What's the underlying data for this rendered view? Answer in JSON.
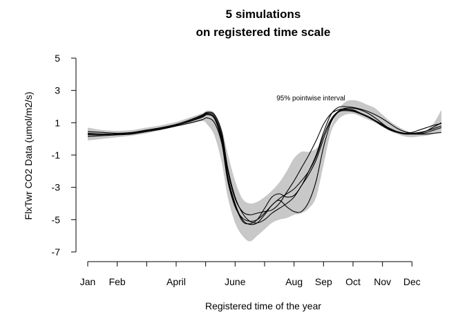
{
  "chart_data": {
    "type": "line",
    "title": "5 simulations",
    "subtitle": "on registered time scale",
    "xlabel": "Registered time of the year",
    "ylabel": "FlxTwr CO2 Data (umol/m2/s)",
    "annotation": "95% pointwise interval",
    "ylim": [
      -7,
      5
    ],
    "yticks": [
      "5",
      "3",
      "1",
      "-1",
      "-3",
      "-5",
      "-7"
    ],
    "xlim": [
      1,
      13
    ],
    "xticks": [
      {
        "x": 1,
        "label": "Jan"
      },
      {
        "x": 2,
        "label": "Feb"
      },
      {
        "x": 3,
        "label": ""
      },
      {
        "x": 4,
        "label": "April"
      },
      {
        "x": 5,
        "label": ""
      },
      {
        "x": 6,
        "label": "June"
      },
      {
        "x": 7,
        "label": ""
      },
      {
        "x": 8,
        "label": "Aug"
      },
      {
        "x": 9,
        "label": "Sep"
      },
      {
        "x": 10,
        "label": "Oct"
      },
      {
        "x": 11,
        "label": "Nov"
      },
      {
        "x": 12,
        "label": "Dec"
      }
    ],
    "band": {
      "name": "95% pointwise interval",
      "color": "#c8c8c8",
      "x": [
        1,
        1.5,
        2,
        2.5,
        3,
        3.5,
        4,
        4.5,
        4.9,
        5.05,
        5.3,
        5.55,
        5.75,
        6.0,
        6.25,
        6.5,
        6.75,
        7.0,
        7.25,
        7.5,
        7.75,
        8.0,
        8.25,
        8.5,
        8.75,
        9.0,
        9.25,
        9.5,
        9.75,
        10.0,
        10.25,
        10.5,
        10.75,
        11.0,
        11.25,
        11.5,
        11.75,
        12.0,
        12.25,
        12.5,
        12.75,
        13.0
      ],
      "upper": [
        0.7,
        0.55,
        0.5,
        0.55,
        0.7,
        0.85,
        1.05,
        1.35,
        1.6,
        1.75,
        1.6,
        0.6,
        -0.9,
        -2.6,
        -3.7,
        -4.0,
        -3.9,
        -3.6,
        -3.2,
        -2.7,
        -2.0,
        -1.2,
        -0.8,
        -0.8,
        -0.6,
        -0.1,
        0.8,
        1.8,
        2.3,
        2.4,
        2.3,
        2.1,
        1.9,
        1.5,
        1.1,
        0.8,
        0.55,
        0.4,
        0.4,
        0.55,
        1.0,
        1.8
      ],
      "lower": [
        -0.1,
        0.0,
        0.1,
        0.2,
        0.35,
        0.55,
        0.75,
        0.95,
        1.1,
        0.9,
        0.2,
        -1.5,
        -3.6,
        -5.2,
        -6.0,
        -6.35,
        -6.0,
        -5.6,
        -5.2,
        -5.0,
        -4.9,
        -4.7,
        -4.6,
        -4.3,
        -3.6,
        -1.6,
        0.4,
        1.2,
        1.5,
        1.55,
        1.4,
        1.2,
        1.0,
        0.75,
        0.5,
        0.3,
        0.15,
        0.1,
        0.15,
        0.2,
        0.3,
        0.45
      ]
    },
    "series": [
      {
        "values": [
          0.35,
          0.3,
          0.3,
          0.35,
          0.5,
          0.65,
          0.85,
          1.15,
          1.45,
          1.6,
          1.4,
          0.2,
          -2.0,
          -3.7,
          -4.5,
          -4.7,
          -4.6,
          -4.5,
          -4.4,
          -4.0,
          -3.3,
          -2.6,
          -1.8,
          -1.0,
          -0.1,
          0.9,
          1.55,
          1.8,
          1.85,
          1.8,
          1.6,
          1.35,
          1.1,
          0.8,
          0.55,
          0.4,
          0.35,
          0.4,
          0.55,
          0.7,
          0.85,
          0.95
        ]
      },
      {
        "values": [
          0.15,
          0.2,
          0.25,
          0.3,
          0.45,
          0.6,
          0.8,
          1.0,
          1.2,
          1.3,
          1.0,
          -0.3,
          -2.6,
          -4.2,
          -4.9,
          -5.1,
          -5.0,
          -4.6,
          -4.1,
          -3.7,
          -3.4,
          -3.1,
          -2.6,
          -2.0,
          -1.1,
          0.2,
          1.2,
          1.7,
          1.8,
          1.75,
          1.6,
          1.4,
          1.15,
          0.9,
          0.65,
          0.45,
          0.35,
          0.35,
          0.4,
          0.5,
          0.65,
          0.8
        ]
      },
      {
        "values": [
          0.45,
          0.4,
          0.35,
          0.4,
          0.55,
          0.7,
          0.9,
          1.2,
          1.5,
          1.65,
          1.5,
          0.4,
          -1.8,
          -3.6,
          -4.6,
          -5.1,
          -5.2,
          -5.0,
          -4.6,
          -4.3,
          -4.0,
          -3.6,
          -2.9,
          -2.2,
          -1.3,
          0.0,
          1.1,
          1.7,
          1.9,
          1.9,
          1.8,
          1.6,
          1.3,
          0.95,
          0.6,
          0.4,
          0.3,
          0.3,
          0.35,
          0.5,
          0.75,
          1.0
        ]
      },
      {
        "values": [
          0.3,
          0.3,
          0.3,
          0.35,
          0.5,
          0.65,
          0.85,
          1.1,
          1.4,
          1.55,
          1.3,
          0.0,
          -2.3,
          -4.0,
          -5.0,
          -5.3,
          -5.2,
          -4.7,
          -4.1,
          -3.8,
          -4.2,
          -4.5,
          -4.5,
          -3.9,
          -2.6,
          -0.5,
          1.0,
          1.65,
          1.75,
          1.7,
          1.55,
          1.35,
          1.1,
          0.85,
          0.6,
          0.45,
          0.35,
          0.3,
          0.3,
          0.4,
          0.55,
          0.7
        ]
      },
      {
        "values": [
          0.25,
          0.25,
          0.3,
          0.35,
          0.5,
          0.65,
          0.85,
          1.1,
          1.35,
          1.5,
          1.25,
          -0.2,
          -2.5,
          -4.1,
          -5.1,
          -5.25,
          -5.0,
          -4.3,
          -3.6,
          -3.4,
          -3.6,
          -3.5,
          -2.9,
          -2.0,
          -1.0,
          0.4,
          1.5,
          1.95,
          2.0,
          1.95,
          1.85,
          1.7,
          1.5,
          1.25,
          0.95,
          0.65,
          0.45,
          0.35,
          0.3,
          0.3,
          0.35,
          0.4
        ]
      }
    ],
    "line_color": "#000000",
    "grid": false,
    "legend": "none"
  }
}
